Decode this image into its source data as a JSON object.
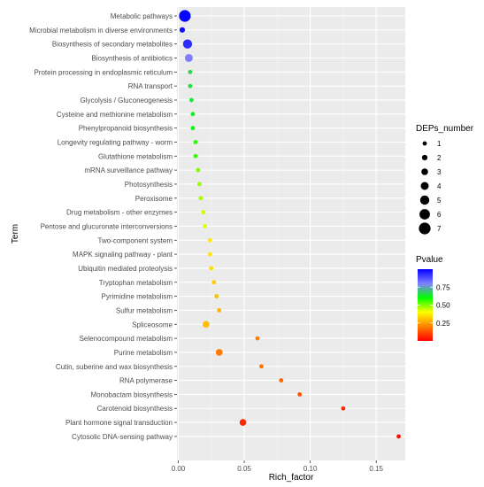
{
  "chart_data": {
    "type": "scatter",
    "xlabel": "Rich_factor",
    "ylabel": "Term",
    "xlim": [
      -0.001,
      0.172
    ],
    "x_ticks": [
      0.0,
      0.05,
      0.1,
      0.15
    ],
    "x_tick_labels": [
      "0.00",
      "0.05",
      "0.10",
      "0.15"
    ],
    "grid": true,
    "legend_position": "right",
    "terms": [
      {
        "term": "Metabolic pathways",
        "x": 0.005,
        "size": 7,
        "pvalue": 0.99
      },
      {
        "term": "Microbial metabolism in diverse environments",
        "x": 0.003,
        "size": 2,
        "pvalue": 0.98
      },
      {
        "term": "Biosynthesis of secondary metabolites",
        "x": 0.007,
        "size": 5,
        "pvalue": 0.93
      },
      {
        "term": "Biosynthesis of antibiotics",
        "x": 0.008,
        "size": 4,
        "pvalue": 0.8
      },
      {
        "term": "Protein processing in endoplasmic reticulum",
        "x": 0.009,
        "size": 1,
        "pvalue": 0.66
      },
      {
        "term": "RNA transport",
        "x": 0.009,
        "size": 1,
        "pvalue": 0.65
      },
      {
        "term": "Glycolysis / Gluconeogenesis",
        "x": 0.01,
        "size": 1,
        "pvalue": 0.64
      },
      {
        "term": "Cysteine and methionine metabolism",
        "x": 0.011,
        "size": 1,
        "pvalue": 0.62
      },
      {
        "term": "Phenylpropanoid biosynthesis",
        "x": 0.011,
        "size": 1,
        "pvalue": 0.61
      },
      {
        "term": "Longevity regulating pathway - worm",
        "x": 0.013,
        "size": 1,
        "pvalue": 0.57
      },
      {
        "term": "Glutathione metabolism",
        "x": 0.013,
        "size": 1,
        "pvalue": 0.56
      },
      {
        "term": "mRNA surveillance pathway",
        "x": 0.015,
        "size": 1,
        "pvalue": 0.5
      },
      {
        "term": "Photosynthesis",
        "x": 0.016,
        "size": 1,
        "pvalue": 0.48
      },
      {
        "term": "Peroxisome",
        "x": 0.017,
        "size": 1,
        "pvalue": 0.47
      },
      {
        "term": "Drug metabolism - other enzymes",
        "x": 0.019,
        "size": 1,
        "pvalue": 0.44
      },
      {
        "term": "Pentose and glucuronate interconversions",
        "x": 0.02,
        "size": 1,
        "pvalue": 0.42
      },
      {
        "term": "Two-component system",
        "x": 0.024,
        "size": 1,
        "pvalue": 0.37
      },
      {
        "term": "MAPK signaling pathway - plant",
        "x": 0.024,
        "size": 1,
        "pvalue": 0.36
      },
      {
        "term": "Ubiquitin mediated proteolysis",
        "x": 0.025,
        "size": 1,
        "pvalue": 0.35
      },
      {
        "term": "Tryptophan metabolism",
        "x": 0.027,
        "size": 1,
        "pvalue": 0.32
      },
      {
        "term": "Pyrimidine metabolism",
        "x": 0.029,
        "size": 1,
        "pvalue": 0.3
      },
      {
        "term": "Sulfur metabolism",
        "x": 0.031,
        "size": 1,
        "pvalue": 0.28
      },
      {
        "term": "Spliceosome",
        "x": 0.021,
        "size": 3,
        "pvalue": 0.3
      },
      {
        "term": "Selenocompound metabolism",
        "x": 0.06,
        "size": 1,
        "pvalue": 0.2
      },
      {
        "term": "Purine metabolism",
        "x": 0.031,
        "size": 3,
        "pvalue": 0.19
      },
      {
        "term": "Cutin, suberine and wax biosynthesis",
        "x": 0.063,
        "size": 1,
        "pvalue": 0.18
      },
      {
        "term": "RNA polymerase",
        "x": 0.078,
        "size": 1,
        "pvalue": 0.16
      },
      {
        "term": "Monobactam biosynthesis",
        "x": 0.092,
        "size": 1,
        "pvalue": 0.13
      },
      {
        "term": "Carotenoid biosynthesis",
        "x": 0.125,
        "size": 1,
        "pvalue": 0.07
      },
      {
        "term": "Plant hormone signal transduction",
        "x": 0.049,
        "size": 3,
        "pvalue": 0.06
      },
      {
        "term": "Cytosolic DNA-sensing pathway",
        "x": 0.167,
        "size": 1,
        "pvalue": 0.03
      }
    ],
    "size_legend": {
      "title": "DEPs_number",
      "labels": [
        "1",
        "2",
        "3",
        "4",
        "5",
        "6",
        "7"
      ],
      "values": [
        1,
        2,
        3,
        4,
        5,
        6,
        7
      ]
    },
    "color_legend": {
      "title": "Pvalue",
      "tick_values": [
        0.75,
        0.5,
        0.25
      ],
      "tick_labels": [
        "0.75",
        "0.50",
        "0.25"
      ],
      "range": [
        0.0,
        1.0
      ],
      "colors": [
        "#ff0000",
        "#ff7f00",
        "#ffff00",
        "#00ff00",
        "#8080ff",
        "#0000ff"
      ]
    }
  }
}
